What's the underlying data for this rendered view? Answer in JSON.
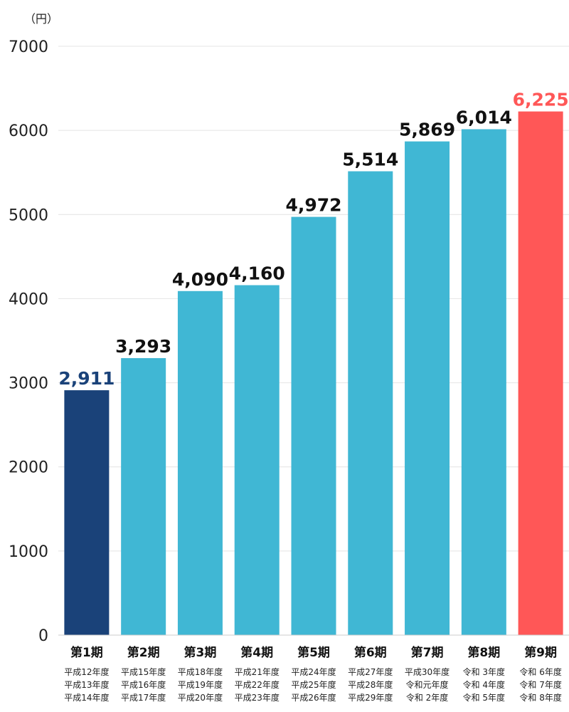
{
  "chart_data": {
    "type": "bar",
    "unit_label": "（円）",
    "ylim": [
      0,
      7000
    ],
    "y_ticks": [
      0,
      1000,
      2000,
      3000,
      4000,
      5000,
      6000,
      7000
    ],
    "grid": true,
    "categories": [
      "第1期",
      "第2期",
      "第3期",
      "第4期",
      "第5期",
      "第6期",
      "第7期",
      "第8期",
      "第9期"
    ],
    "values": [
      2911,
      3293,
      4090,
      4160,
      4972,
      5514,
      5869,
      6014,
      6225
    ],
    "value_labels": [
      "2,911",
      "3,293",
      "4,090",
      "4,160",
      "4,972",
      "5,514",
      "5,869",
      "6,014",
      "6,225"
    ],
    "periods": [
      [
        "平成12年度",
        "平成13年度",
        "平成14年度"
      ],
      [
        "平成15年度",
        "平成16年度",
        "平成17年度"
      ],
      [
        "平成18年度",
        "平成19年度",
        "平成20年度"
      ],
      [
        "平成21年度",
        "平成22年度",
        "平成23年度"
      ],
      [
        "平成24年度",
        "平成25年度",
        "平成26年度"
      ],
      [
        "平成27年度",
        "平成28年度",
        "平成29年度"
      ],
      [
        "平成30年度",
        "令和元年度",
        "令和 2年度"
      ],
      [
        "令和 3年度",
        "令和 4年度",
        "令和 5年度"
      ],
      [
        "令和 6年度",
        "令和 7年度",
        "令和 8年度"
      ]
    ],
    "bar_colors": [
      "#1a4279",
      "#40b7d4",
      "#40b7d4",
      "#40b7d4",
      "#40b7d4",
      "#40b7d4",
      "#40b7d4",
      "#40b7d4",
      "#ff5757"
    ],
    "value_label_colors": [
      "#1a4279",
      "#111111",
      "#111111",
      "#111111",
      "#111111",
      "#111111",
      "#111111",
      "#111111",
      "#ff5757"
    ]
  }
}
